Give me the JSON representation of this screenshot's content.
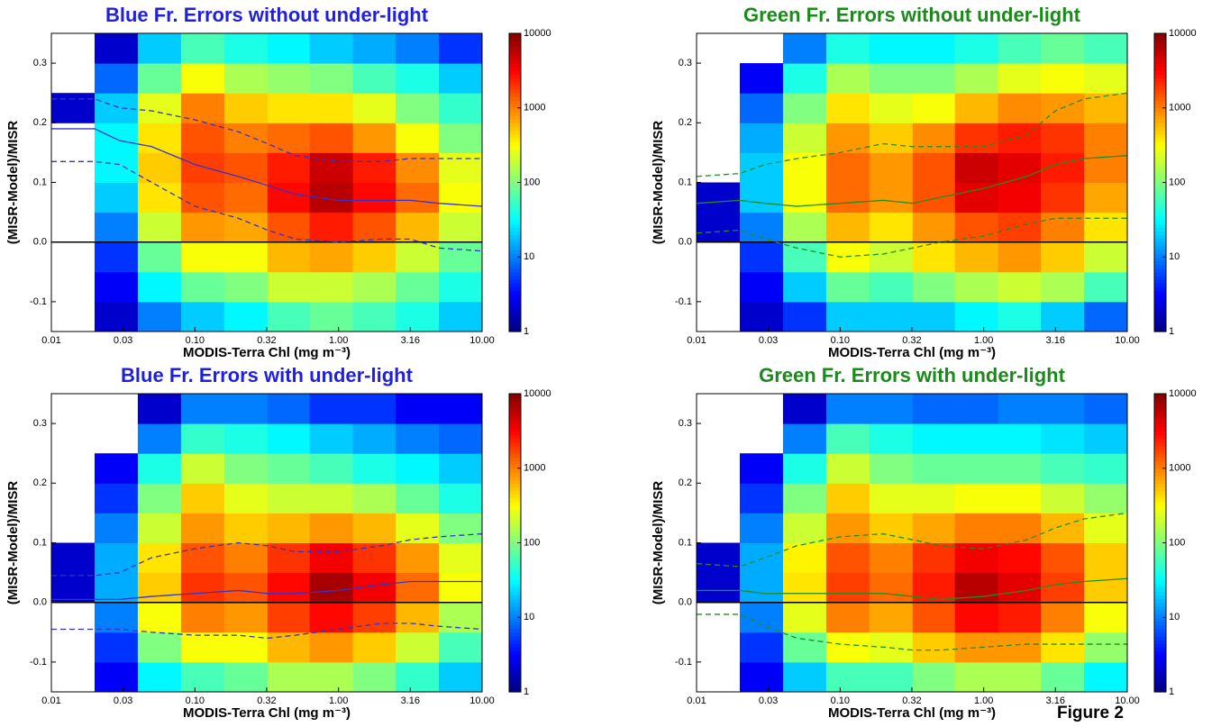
{
  "chart_data": [
    {
      "type": "heatmap",
      "title": "Blue Fr. Errors without under-light",
      "title_color": "#1f1fe0",
      "xlabel": "MODIS-Terra Chl (mg m⁻³)",
      "ylabel": "(MISR-Model)/MISR",
      "xlog": true,
      "xlim": [
        0.01,
        10
      ],
      "xticks": [
        0.01,
        {
          "value": 0.0316,
          "label": "0.03"
        },
        {
          "value": 0.1,
          "label": "0.10"
        },
        {
          "value": 0.316,
          "label": "0.32"
        },
        {
          "value": 1,
          "label": "1.00"
        },
        3.16,
        {
          "value": 10,
          "label": "10.00"
        }
      ],
      "ylim": [
        -0.15,
        0.35
      ],
      "yticks": [
        -0.1,
        {
          "value": 0,
          "label": "0.0"
        },
        0.1,
        0.2,
        0.3
      ],
      "colormap": "jet",
      "clog": true,
      "clim": [
        1,
        10000
      ],
      "cticks": [
        1,
        10,
        100,
        1000,
        10000
      ],
      "reference_line": 0,
      "xbins": [
        0.01,
        0.02,
        0.04,
        0.08,
        0.16,
        0.32,
        0.63,
        1.26,
        2.5,
        5,
        10
      ],
      "ybins": [
        -0.15,
        -0.1,
        -0.05,
        0,
        0.05,
        0.1,
        0.15,
        0.2,
        0.25,
        0.3,
        0.35
      ],
      "z": [
        [
          null,
          2,
          10,
          20,
          30,
          60,
          80,
          60,
          40,
          20
        ],
        [
          null,
          3,
          30,
          80,
          100,
          200,
          200,
          150,
          80,
          40
        ],
        [
          null,
          5,
          80,
          300,
          300,
          600,
          700,
          500,
          200,
          80
        ],
        [
          null,
          10,
          200,
          800,
          700,
          1500,
          2500,
          1500,
          600,
          200
        ],
        [
          null,
          20,
          400,
          1500,
          1200,
          3000,
          6000,
          3000,
          1200,
          300
        ],
        [
          null,
          30,
          500,
          1800,
          1500,
          2500,
          5000,
          2500,
          900,
          250
        ],
        [
          null,
          30,
          400,
          1500,
          1000,
          1200,
          1500,
          800,
          300,
          100
        ],
        [
          2,
          20,
          250,
          1000,
          500,
          400,
          400,
          250,
          100,
          50
        ],
        [
          null,
          8,
          80,
          300,
          150,
          120,
          100,
          60,
          40,
          20
        ],
        [
          null,
          2,
          20,
          60,
          40,
          30,
          20,
          15,
          10,
          5
        ]
      ],
      "x": [
        0.01,
        0.02,
        0.03,
        0.05,
        0.1,
        0.2,
        0.32,
        0.5,
        1,
        2,
        3.16,
        5,
        10
      ],
      "series": [
        {
          "color": "#3333cc",
          "style": "solid",
          "values": [
            0.19,
            0.19,
            0.17,
            0.16,
            0.13,
            0.11,
            0.095,
            0.08,
            0.07,
            0.07,
            0.07,
            0.065,
            0.06
          ]
        },
        {
          "color": "#3333cc",
          "style": "dashed",
          "values": [
            0.24,
            0.24,
            0.225,
            0.22,
            0.205,
            0.185,
            0.165,
            0.145,
            0.135,
            0.135,
            0.14,
            0.14,
            0.14
          ]
        },
        {
          "color": "#3333cc",
          "style": "dashed",
          "values": [
            0.135,
            0.135,
            0.13,
            0.1,
            0.06,
            0.04,
            0.02,
            0.005,
            0,
            0.005,
            0.005,
            -0.01,
            -0.015
          ]
        }
      ]
    },
    {
      "type": "heatmap",
      "title": "Green Fr. Errors without under-light",
      "title_color": "#1a8a1a",
      "xlabel": "MODIS-Terra Chl (mg m⁻³)",
      "ylabel": "(MISR-Model)/MISR",
      "xlog": true,
      "xlim": [
        0.01,
        10
      ],
      "xticks": [
        0.01,
        {
          "value": 0.0316,
          "label": "0.03"
        },
        {
          "value": 0.1,
          "label": "0.10"
        },
        {
          "value": 0.316,
          "label": "0.32"
        },
        {
          "value": 1,
          "label": "1.00"
        },
        3.16,
        {
          "value": 10,
          "label": "10.00"
        }
      ],
      "ylim": [
        -0.15,
        0.35
      ],
      "yticks": [
        -0.1,
        {
          "value": 0,
          "label": "0.0"
        },
        0.1,
        0.2,
        0.3
      ],
      "colormap": "jet",
      "clog": true,
      "clim": [
        1,
        10000
      ],
      "cticks": [
        1,
        10,
        100,
        1000,
        10000
      ],
      "reference_line": 0,
      "xbins": [
        0.01,
        0.02,
        0.04,
        0.08,
        0.16,
        0.32,
        0.63,
        1.26,
        2.5,
        5,
        10
      ],
      "ybins": [
        -0.15,
        -0.1,
        -0.05,
        0,
        0.05,
        0.1,
        0.15,
        0.2,
        0.25,
        0.3,
        0.35
      ],
      "z": [
        [
          null,
          2,
          5,
          20,
          20,
          20,
          30,
          40,
          20,
          8
        ],
        [
          null,
          3,
          20,
          80,
          60,
          100,
          150,
          200,
          150,
          60
        ],
        [
          null,
          5,
          60,
          300,
          200,
          400,
          600,
          800,
          500,
          200
        ],
        [
          2,
          10,
          150,
          600,
          400,
          800,
          1500,
          1800,
          1000,
          400
        ],
        [
          2,
          20,
          300,
          1200,
          800,
          1500,
          4000,
          3500,
          2000,
          700
        ],
        [
          null,
          20,
          300,
          1200,
          800,
          1500,
          5000,
          4000,
          2500,
          1000
        ],
        [
          null,
          15,
          200,
          800,
          500,
          900,
          2000,
          2500,
          2000,
          1000
        ],
        [
          null,
          8,
          100,
          400,
          250,
          300,
          600,
          900,
          800,
          600
        ],
        [
          null,
          3,
          40,
          150,
          100,
          100,
          150,
          250,
          300,
          250
        ],
        [
          null,
          null,
          10,
          40,
          30,
          30,
          40,
          60,
          80,
          60
        ]
      ],
      "x": [
        0.01,
        0.02,
        0.03,
        0.05,
        0.1,
        0.2,
        0.32,
        0.5,
        1,
        2,
        3.16,
        5,
        10
      ],
      "series": [
        {
          "color": "#228b22",
          "style": "solid",
          "values": [
            0.065,
            0.07,
            0.065,
            0.06,
            0.065,
            0.07,
            0.065,
            0.075,
            0.09,
            0.11,
            0.13,
            0.14,
            0.145
          ]
        },
        {
          "color": "#228b22",
          "style": "dashed",
          "values": [
            0.11,
            0.115,
            0.13,
            0.14,
            0.15,
            0.165,
            0.16,
            0.16,
            0.16,
            0.18,
            0.22,
            0.24,
            0.25
          ]
        },
        {
          "color": "#228b22",
          "style": "dashed",
          "values": [
            0.015,
            0.02,
            0.005,
            -0.01,
            -0.025,
            -0.02,
            -0.01,
            0,
            0.01,
            0.03,
            0.04,
            0.04,
            0.04
          ]
        }
      ]
    },
    {
      "type": "heatmap",
      "title": "Blue Fr. Errors with under-light",
      "title_color": "#1f1fe0",
      "xlabel": "MODIS-Terra Chl (mg m⁻³)",
      "ylabel": "(MISR-Model)/MISR",
      "xlog": true,
      "xlim": [
        0.01,
        10
      ],
      "xticks": [
        0.01,
        {
          "value": 0.0316,
          "label": "0.03"
        },
        {
          "value": 0.1,
          "label": "0.10"
        },
        {
          "value": 0.316,
          "label": "0.32"
        },
        {
          "value": 1,
          "label": "1.00"
        },
        3.16,
        {
          "value": 10,
          "label": "10.00"
        }
      ],
      "ylim": [
        -0.15,
        0.35
      ],
      "yticks": [
        -0.1,
        {
          "value": 0,
          "label": "0.0"
        },
        0.1,
        0.2,
        0.3
      ],
      "colormap": "jet",
      "clog": true,
      "clim": [
        1,
        10000
      ],
      "cticks": [
        1,
        10,
        100,
        1000,
        10000
      ],
      "reference_line": 0,
      "xbins": [
        0.01,
        0.02,
        0.04,
        0.08,
        0.16,
        0.32,
        0.63,
        1.26,
        2.5,
        5,
        10
      ],
      "ybins": [
        -0.15,
        -0.1,
        -0.05,
        0,
        0.05,
        0.1,
        0.15,
        0.2,
        0.25,
        0.3,
        0.35
      ],
      "z": [
        [
          null,
          3,
          30,
          60,
          80,
          150,
          150,
          100,
          50,
          20
        ],
        [
          null,
          5,
          100,
          300,
          300,
          600,
          800,
          500,
          200,
          60
        ],
        [
          null,
          10,
          300,
          1000,
          800,
          1800,
          3000,
          1800,
          600,
          150
        ],
        [
          2,
          15,
          500,
          2000,
          1500,
          3000,
          7000,
          3500,
          1200,
          300
        ],
        [
          2,
          15,
          400,
          1500,
          1000,
          2000,
          3500,
          2000,
          800,
          250
        ],
        [
          null,
          10,
          200,
          800,
          500,
          600,
          800,
          600,
          250,
          100
        ],
        [
          null,
          5,
          100,
          500,
          250,
          200,
          200,
          150,
          80,
          40
        ],
        [
          null,
          3,
          40,
          200,
          100,
          80,
          60,
          40,
          30,
          20
        ],
        [
          null,
          null,
          10,
          50,
          40,
          30,
          20,
          15,
          10,
          8
        ],
        [
          null,
          null,
          2,
          10,
          10,
          8,
          5,
          5,
          3,
          3
        ]
      ],
      "x": [
        0.01,
        0.02,
        0.03,
        0.05,
        0.1,
        0.2,
        0.32,
        0.5,
        1,
        2,
        3.16,
        5,
        10
      ],
      "series": [
        {
          "color": "#3333cc",
          "style": "solid",
          "values": [
            0.005,
            0.005,
            0.005,
            0.01,
            0.015,
            0.02,
            0.015,
            0.015,
            0.02,
            0.03,
            0.035,
            0.035,
            0.035
          ]
        },
        {
          "color": "#3333cc",
          "style": "dashed",
          "values": [
            0.045,
            0.045,
            0.05,
            0.075,
            0.09,
            0.1,
            0.095,
            0.085,
            0.085,
            0.095,
            0.105,
            0.11,
            0.115
          ]
        },
        {
          "color": "#3333cc",
          "style": "dashed",
          "values": [
            -0.045,
            -0.045,
            -0.045,
            -0.05,
            -0.055,
            -0.055,
            -0.06,
            -0.055,
            -0.045,
            -0.035,
            -0.035,
            -0.04,
            -0.045
          ]
        }
      ]
    },
    {
      "type": "heatmap",
      "title": "Green Fr. Errors with under-light",
      "title_color": "#1a8a1a",
      "xlabel": "MODIS-Terra Chl (mg m⁻³)",
      "ylabel": "(MISR-Model)/MISR",
      "xlog": true,
      "xlim": [
        0.01,
        10
      ],
      "xticks": [
        0.01,
        {
          "value": 0.0316,
          "label": "0.03"
        },
        {
          "value": 0.1,
          "label": "0.10"
        },
        {
          "value": 0.316,
          "label": "0.32"
        },
        {
          "value": 1,
          "label": "1.00"
        },
        3.16,
        {
          "value": 10,
          "label": "10.00"
        }
      ],
      "ylim": [
        -0.15,
        0.35
      ],
      "yticks": [
        -0.1,
        {
          "value": 0,
          "label": "0.0"
        },
        0.1,
        0.2,
        0.3
      ],
      "colormap": "jet",
      "clog": true,
      "clim": [
        1,
        10000
      ],
      "cticks": [
        1,
        10,
        100,
        1000,
        10000
      ],
      "reference_line": 0,
      "xbins": [
        0.01,
        0.02,
        0.04,
        0.08,
        0.16,
        0.32,
        0.63,
        1.26,
        2.5,
        5,
        10
      ],
      "ybins": [
        -0.15,
        -0.1,
        -0.05,
        0,
        0.05,
        0.1,
        0.15,
        0.2,
        0.25,
        0.3,
        0.35
      ],
      "z": [
        [
          null,
          3,
          20,
          60,
          60,
          100,
          150,
          150,
          80,
          30
        ],
        [
          null,
          5,
          80,
          300,
          250,
          500,
          800,
          800,
          400,
          120
        ],
        [
          null,
          10,
          250,
          1000,
          700,
          1500,
          3000,
          2500,
          1000,
          300
        ],
        [
          2,
          15,
          400,
          1800,
          1200,
          2500,
          6000,
          4000,
          1800,
          500
        ],
        [
          2,
          15,
          350,
          1500,
          1000,
          2000,
          3500,
          3000,
          1500,
          500
        ],
        [
          null,
          10,
          200,
          800,
          500,
          700,
          1000,
          1000,
          600,
          250
        ],
        [
          null,
          5,
          100,
          500,
          250,
          250,
          300,
          300,
          200,
          120
        ],
        [
          null,
          3,
          40,
          200,
          100,
          80,
          80,
          80,
          60,
          50
        ],
        [
          null,
          null,
          10,
          60,
          40,
          30,
          30,
          30,
          25,
          20
        ],
        [
          null,
          null,
          2,
          10,
          10,
          8,
          8,
          10,
          10,
          8
        ]
      ],
      "x": [
        0.01,
        0.02,
        0.03,
        0.05,
        0.1,
        0.2,
        0.32,
        0.5,
        1,
        2,
        3.16,
        5,
        10
      ],
      "series": [
        {
          "color": "#228b22",
          "style": "solid",
          "values": [
            0.02,
            0.02,
            0.015,
            0.015,
            0.015,
            0.015,
            0.01,
            0.005,
            0.01,
            0.02,
            0.03,
            0.035,
            0.04
          ]
        },
        {
          "color": "#228b22",
          "style": "dashed",
          "values": [
            0.065,
            0.06,
            0.075,
            0.095,
            0.11,
            0.115,
            0.105,
            0.095,
            0.09,
            0.105,
            0.125,
            0.14,
            0.15
          ]
        },
        {
          "color": "#228b22",
          "style": "dashed",
          "values": [
            -0.02,
            -0.02,
            -0.04,
            -0.06,
            -0.07,
            -0.075,
            -0.08,
            -0.08,
            -0.075,
            -0.07,
            -0.07,
            -0.07,
            -0.07
          ]
        }
      ]
    }
  ],
  "figure_label": "Figure 2"
}
